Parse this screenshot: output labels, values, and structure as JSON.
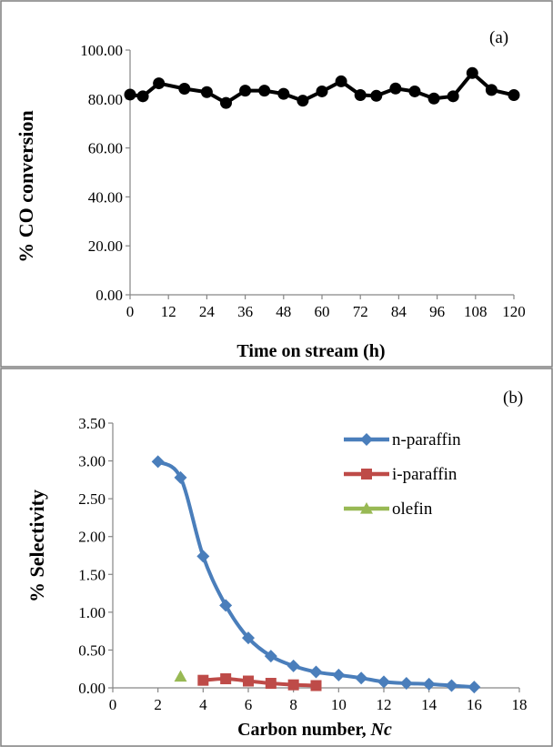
{
  "chart_data": [
    {
      "type": "line",
      "panel_label": "(a)",
      "title": "",
      "xlabel": "Time on stream (h)",
      "ylabel": "% CO conversion",
      "xlim": [
        0,
        120
      ],
      "ylim": [
        0,
        100
      ],
      "x_ticks": [
        "0",
        "12",
        "24",
        "36",
        "48",
        "60",
        "72",
        "84",
        "96",
        "108",
        "120"
      ],
      "y_ticks": [
        "0.00",
        "20.00",
        "40.00",
        "60.00",
        "80.00",
        "100.00"
      ],
      "grid": false,
      "series": [
        {
          "color": "#000000",
          "marker": "circle",
          "x": [
            0,
            4,
            9,
            17,
            24,
            30,
            36,
            42,
            48,
            54,
            60,
            66,
            72,
            77,
            83,
            89,
            95,
            101,
            107,
            113,
            120
          ],
          "y": [
            81.8,
            81.1,
            86.4,
            84.2,
            82.8,
            78.4,
            83.4,
            83.4,
            82.1,
            79.3,
            83.1,
            87.2,
            81.6,
            81.3,
            84.3,
            83.1,
            80.2,
            81.1,
            90.6,
            83.7,
            81.6
          ]
        }
      ]
    },
    {
      "type": "line",
      "panel_label": "(b)",
      "title": "",
      "xlabel_prefix": "Carbon number, ",
      "xlabel_italic": "Nc",
      "ylabel": "% Selectivity",
      "xlim": [
        0,
        18
      ],
      "ylim": [
        0,
        3.5
      ],
      "x_ticks": [
        "0",
        "2",
        "4",
        "6",
        "8",
        "10",
        "12",
        "14",
        "16",
        "18"
      ],
      "y_ticks": [
        "0.00",
        "0.50",
        "1.00",
        "1.50",
        "2.00",
        "2.50",
        "3.00",
        "3.50"
      ],
      "grid": false,
      "legend_position": "top-right",
      "series": [
        {
          "name": "n-paraffin",
          "color": "#4a7ebb",
          "marker": "diamond",
          "x": [
            2,
            3,
            4,
            5,
            6,
            7,
            8,
            9,
            10,
            11,
            12,
            13,
            14,
            15,
            16
          ],
          "y": [
            2.99,
            2.78,
            1.74,
            1.09,
            0.66,
            0.42,
            0.29,
            0.21,
            0.17,
            0.13,
            0.08,
            0.06,
            0.05,
            0.03,
            0.01
          ]
        },
        {
          "name": "i-paraffin",
          "color": "#be4b48",
          "marker": "square",
          "x": [
            4,
            5,
            6,
            7,
            8,
            9
          ],
          "y": [
            0.1,
            0.12,
            0.09,
            0.06,
            0.04,
            0.03
          ]
        },
        {
          "name": "olefin",
          "color": "#98b954",
          "marker": "triangle",
          "x": [
            3
          ],
          "y": [
            0.15
          ]
        }
      ]
    }
  ]
}
